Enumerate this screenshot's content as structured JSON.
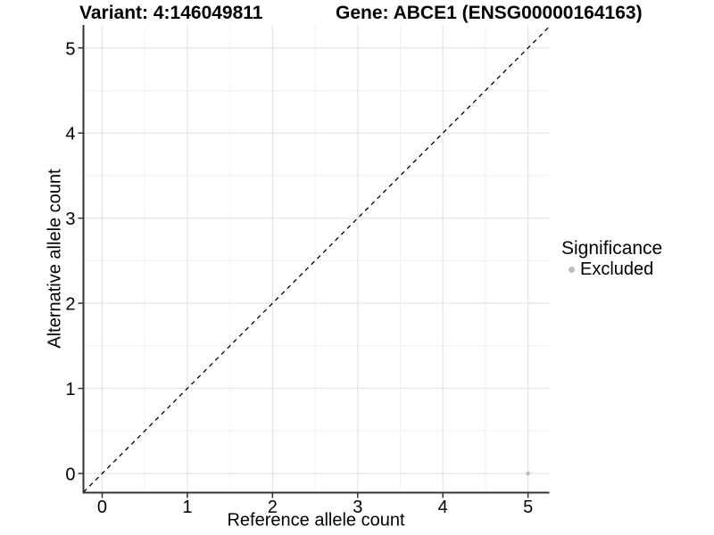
{
  "figure": {
    "title_left": "Variant: 4:146049811",
    "title_right": "Gene: ABCE1 (ENSG00000164163)"
  },
  "chart_data": {
    "type": "scatter",
    "title": "Variant: 4:146049811   Gene: ABCE1 (ENSG00000164163)",
    "xlabel": "Reference allele count",
    "ylabel": "Alternative allele count",
    "xlim": [
      -0.22,
      5.25
    ],
    "ylim": [
      -0.225,
      5.27
    ],
    "x_ticks": [
      0,
      1,
      2,
      3,
      4,
      5
    ],
    "y_ticks": [
      0,
      1,
      2,
      3,
      4,
      5
    ],
    "x_minor": [
      0.5,
      1.5,
      2.5,
      3.5,
      4.5
    ],
    "y_minor": [
      0.5,
      1.5,
      2.5,
      3.5,
      4.5
    ],
    "grid": true,
    "reference_line": {
      "style": "dashed",
      "slope": 1,
      "intercept": 0,
      "color": "#000000"
    },
    "series": [
      {
        "name": "Excluded",
        "color": "#bdbdbd",
        "points": [
          {
            "x": 5,
            "y": 0
          }
        ]
      }
    ],
    "legend": {
      "position": "right",
      "title": "Significance",
      "items": [
        {
          "label": "Excluded",
          "color": "#bdbdbd"
        }
      ]
    },
    "colors": {
      "grid_major": "#e4e4e4",
      "grid_minor": "#f1f1f1",
      "axis_line": "#333333",
      "tick": "#333333",
      "text": "#000000",
      "point": "#bdbdbd"
    }
  }
}
